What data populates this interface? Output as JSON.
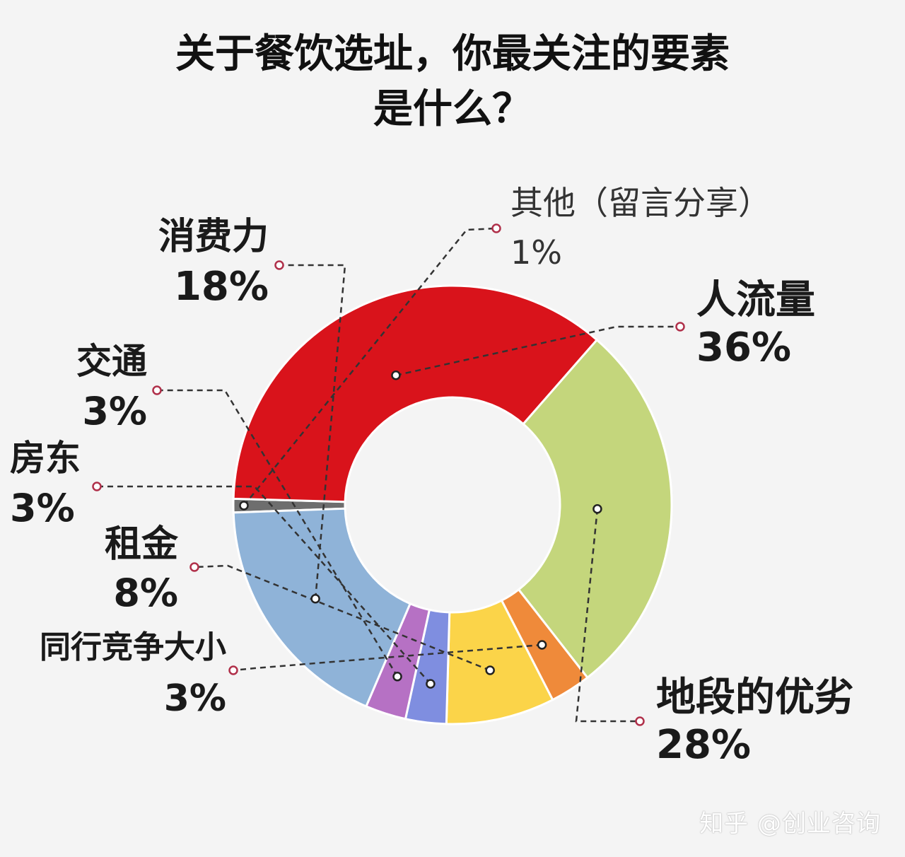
{
  "title": {
    "line1": "关于餐饮选址，你最关注的要素",
    "line2": "是什么？"
  },
  "watermark": "知乎 @创业咨询",
  "chart_data": {
    "type": "pie",
    "donut": true,
    "title": "关于餐饮选址，你最关注的要素是什么？",
    "slices": [
      {
        "key": "other",
        "label": "其他（留言分享）",
        "value": 1,
        "value_label": "1%",
        "color": "#6e6e6e"
      },
      {
        "key": "traffic",
        "label": "人流量",
        "value": 36,
        "value_label": "36%",
        "color": "#d9131b"
      },
      {
        "key": "location",
        "label": "地段的优劣",
        "value": 28,
        "value_label": "28%",
        "color": "#c4d67c"
      },
      {
        "key": "competition",
        "label": "同行竞争大小",
        "value": 3,
        "value_label": "3%",
        "color": "#ef8a3a"
      },
      {
        "key": "rent",
        "label": "租金",
        "value": 8,
        "value_label": "8%",
        "color": "#fbd449"
      },
      {
        "key": "landlord",
        "label": "房东",
        "value": 3,
        "value_label": "3%",
        "color": "#7f8ee0"
      },
      {
        "key": "transport",
        "label": "交通",
        "value": 3,
        "value_label": "3%",
        "color": "#b671c4"
      },
      {
        "key": "spending",
        "label": "消费力",
        "value": 18,
        "value_label": "18%",
        "color": "#8fb3d8"
      }
    ]
  }
}
